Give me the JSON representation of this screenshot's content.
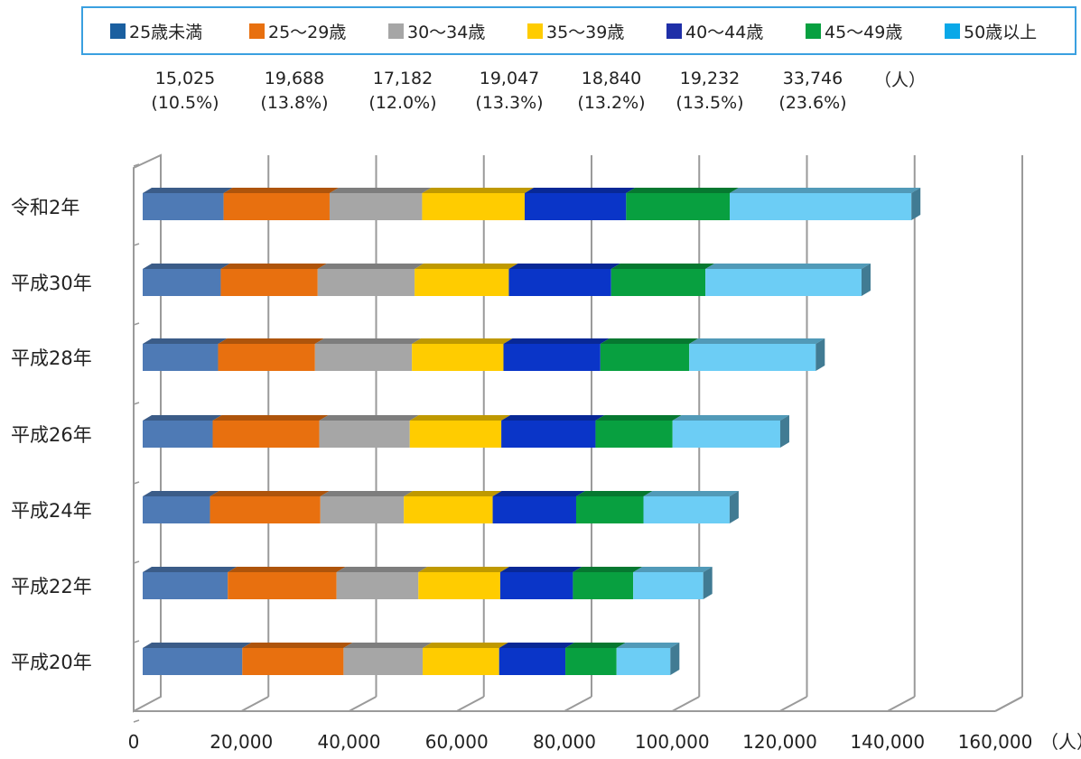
{
  "chart_data": {
    "type": "bar",
    "orientation": "horizontal",
    "stacked": true,
    "categories": [
      "令和2年",
      "平成30年",
      "平成28年",
      "平成26年",
      "平成24年",
      "平成22年",
      "平成20年"
    ],
    "series": [
      {
        "name": "25歳未満",
        "color": "#4e7ab5",
        "values": [
          15025,
          14500,
          14000,
          13000,
          12500,
          15800,
          18500
        ]
      },
      {
        "name": "25～29歳",
        "color": "#e8700f",
        "values": [
          19688,
          18000,
          18000,
          19800,
          20500,
          20200,
          18800
        ]
      },
      {
        "name": "30～34歳",
        "color": "#a6a6a6",
        "values": [
          17182,
          18000,
          18000,
          16800,
          15500,
          15200,
          14700
        ]
      },
      {
        "name": "35～39歳",
        "color": "#ffcc00",
        "values": [
          19047,
          17500,
          17000,
          17000,
          16500,
          15200,
          14200
        ]
      },
      {
        "name": "40～44歳",
        "color": "#0a35c8",
        "values": [
          18840,
          19000,
          18000,
          17500,
          15500,
          13500,
          12300
        ]
      },
      {
        "name": "45～49歳",
        "color": "#08a040",
        "values": [
          19232,
          17500,
          16500,
          14300,
          12500,
          11200,
          9500
        ]
      },
      {
        "name": "50歳以上",
        "color": "#6ccdf5",
        "values": [
          33746,
          29000,
          23500,
          20000,
          16000,
          13000,
          10000
        ]
      }
    ],
    "summary_labels": [
      {
        "value": "15,025",
        "percent": "(10.5%)"
      },
      {
        "value": "19,688",
        "percent": "(13.8%)"
      },
      {
        "value": "17,182",
        "percent": "(12.0%)"
      },
      {
        "value": "19,047",
        "percent": "(13.3%)"
      },
      {
        "value": "18,840",
        "percent": "(13.2%)"
      },
      {
        "value": "19,232",
        "percent": "(13.5%)"
      },
      {
        "value": "33,746",
        "percent": "(23.6%)"
      }
    ],
    "summary_unit": "（人）",
    "xlim": [
      0,
      160000
    ],
    "x_ticks": [
      "0",
      "20,000",
      "40,000",
      "60,000",
      "80,000",
      "100,000",
      "120,000",
      "140,000",
      "160,000"
    ],
    "x_unit": "（人）",
    "legend_position": "top",
    "grid": true
  }
}
